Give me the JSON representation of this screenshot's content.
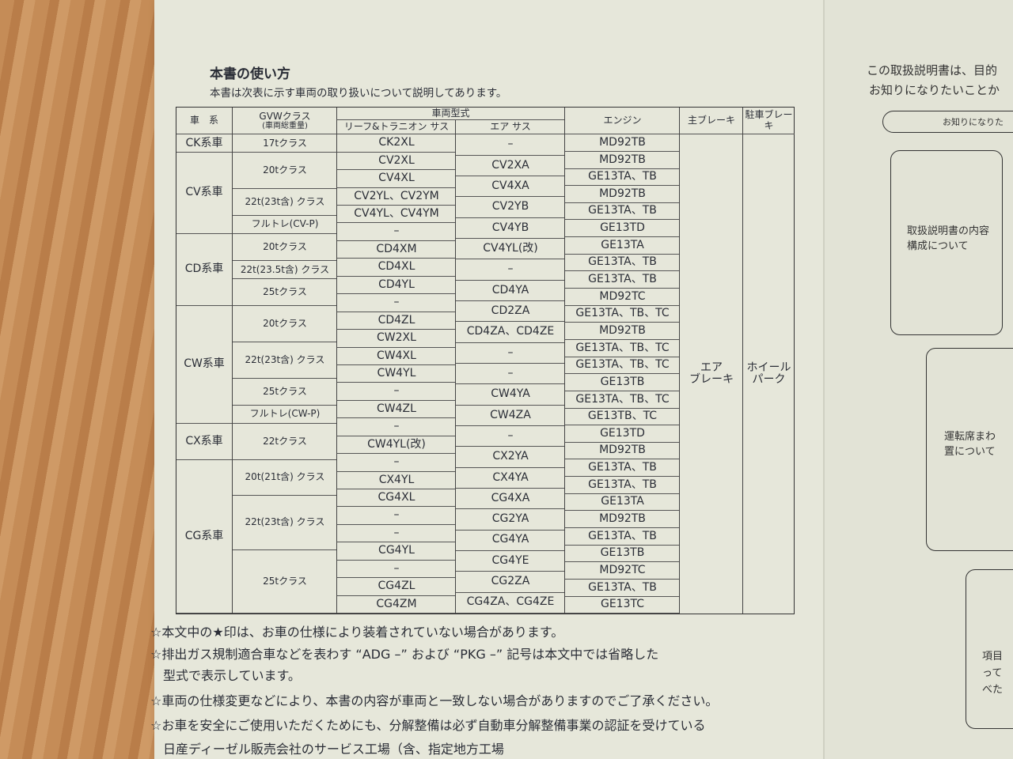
{
  "title": "本書の使い方",
  "intro": "本書は次表に示す車両の取り扱いについて説明してあります。",
  "headers": {
    "series": "車　系",
    "gvw": "GVWクラス",
    "gvw_sub": "(車両総重量)",
    "model": "車両型式",
    "leaf": "リーフ&トラニオン サス",
    "air": "エア サス",
    "engine": "エンジン",
    "main_brake": "主ブレーキ",
    "parking_brake": "駐車ブレーキ"
  },
  "series": [
    "CK系車",
    "CV系車",
    "CD系車",
    "CW系車",
    "CX系車",
    "CG系車"
  ],
  "gvw": [
    "17tクラス",
    "20tクラス",
    "22t(23t含) クラス",
    "フルトレ(CV-P)",
    "20tクラス",
    "22t(23.5t含) クラス",
    "25tクラス",
    "20tクラス",
    "22t(23t含) クラス",
    "25tクラス",
    "フルトレ(CW-P)",
    "22tクラス",
    "20t(21t含) クラス",
    "22t(23t含) クラス",
    "25tクラス"
  ],
  "leaf": [
    "CK2XL",
    "CV2XL",
    "CV4XL",
    "CV2YL、CV2YM",
    "CV4YL、CV4YM",
    "–",
    "CD4XM",
    "CD4XL",
    "CD4YL",
    "–",
    "CD4ZL",
    "CW2XL",
    "CW4XL",
    "CW4YL",
    "–",
    "CW4ZL",
    "–",
    "CW4YL(改)",
    "–",
    "CX4YL",
    "CG4XL",
    "–",
    "–",
    "CG4YL",
    "–",
    "CG4ZL",
    "CG4ZM"
  ],
  "air": [
    "–",
    "CV2XA",
    "CV4XA",
    "CV2YB",
    "CV4YB",
    "CV4YL(改)",
    "–",
    "CD4YA",
    "CD2ZA",
    "CD4ZA、CD4ZE",
    "–",
    "–",
    "CW4YA",
    "CW4ZA",
    "–",
    "CX2YA",
    "CX4YA",
    "CG4XA",
    "CG2YA",
    "CG4YA",
    "CG4YE",
    "CG2ZA",
    "CG4ZA、CG4ZE"
  ],
  "engine": [
    "MD92TB",
    "MD92TB",
    "GE13TA、TB",
    "MD92TB",
    "GE13TA、TB",
    "GE13TD",
    "GE13TA",
    "GE13TA、TB",
    "GE13TA、TB",
    "MD92TC",
    "GE13TA、TB、TC",
    "MD92TB",
    "GE13TA、TB、TC",
    "GE13TA、TB、TC",
    "GE13TB",
    "GE13TA、TB、TC",
    "GE13TB、TC",
    "GE13TD",
    "MD92TB",
    "GE13TA、TB",
    "GE13TA、TB",
    "GE13TA",
    "MD92TB",
    "GE13TA、TB",
    "GE13TB",
    "MD92TC",
    "GE13TA、TB",
    "GE13TC"
  ],
  "main_brake": "エア\nブレーキ",
  "parking_brake": "ホイール\nパーク",
  "notes": [
    "☆本文中の★印は、お車の仕様により装着されていない場合があります。",
    "☆排出ガス規制適合車などを表わす “ADG –” および “PKG –” 記号は本文中では省略した",
    "　型式で表示しています。",
    "☆車両の仕様変更などにより、本書の内容が車両と一致しない場合がありますのでご了承ください。",
    "☆お車を安全にご使用いただくためにも、分解整備は必ず自動車分解整備事業の認証を受けている",
    "　日産ディーゼル販売会社のサービス工場（含、指定地方工場"
  ],
  "right_page": {
    "line1": "この取扱説明書は、目的",
    "line2": "お知りになりたいことか",
    "pill": "お知りになりた",
    "box1": "取扱説明書の内容\n構成について",
    "box2": "運転席まわ\n置について",
    "box3": "項目\nって\nべた"
  }
}
